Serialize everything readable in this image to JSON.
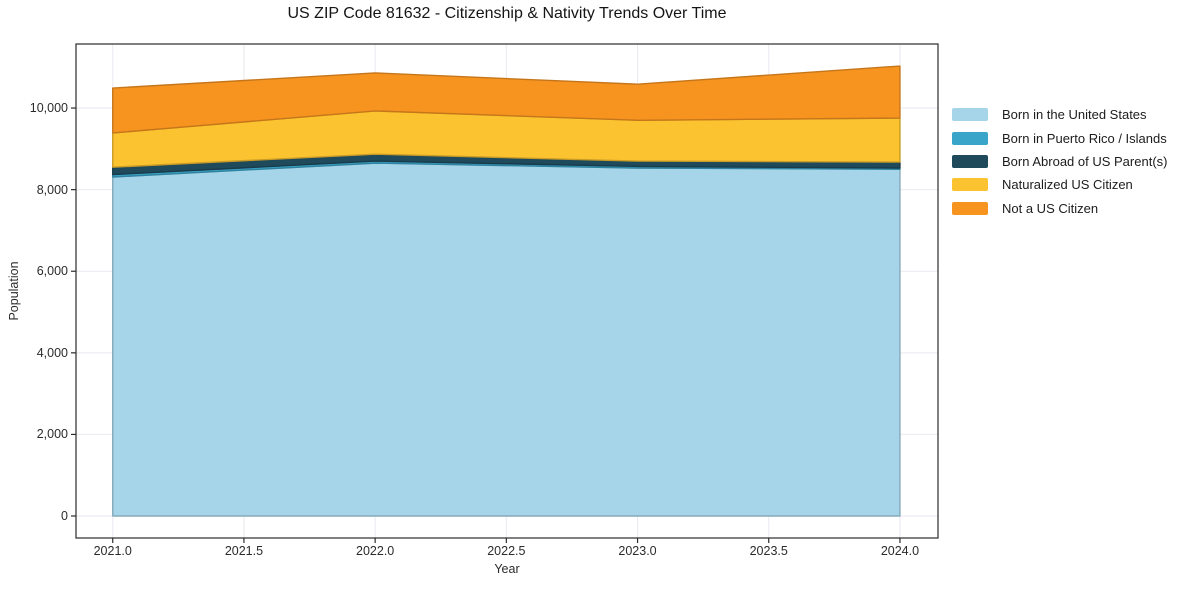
{
  "window": {
    "title": "US ZIP Code 81632 - Citizenship & Nativity Trends Over Time"
  },
  "chart_data": {
    "type": "area",
    "stacked": true,
    "title": "US ZIP Code 81632 - Citizenship & Nativity Trends Over Time",
    "xlabel": "Year",
    "ylabel": "Population",
    "x": [
      2021,
      2022,
      2023,
      2024
    ],
    "series": [
      {
        "name": "Born in the United States",
        "color": "#a6d4e8",
        "values": [
          8310,
          8650,
          8530,
          8500
        ]
      },
      {
        "name": "Born in Puerto Rico / Islands",
        "color": "#39a5c8",
        "values": [
          60,
          50,
          40,
          30
        ]
      },
      {
        "name": "Born Abroad of US Parent(s)",
        "color": "#1f4a5c",
        "values": [
          180,
          170,
          130,
          145
        ]
      },
      {
        "name": "Naturalized US Citizen",
        "color": "#fcc330",
        "values": [
          840,
          1060,
          1000,
          1080
        ]
      },
      {
        "name": "Not a US Citizen",
        "color": "#f79420",
        "values": [
          1100,
          930,
          885,
          1275
        ]
      }
    ],
    "totals": [
      10490,
      10860,
      10585,
      11030
    ],
    "xlim": [
      2020.86,
      2024.145
    ],
    "ylim": [
      -539,
      11570
    ],
    "xticks": {
      "values": [
        2021.0,
        2021.5,
        2022.0,
        2022.5,
        2023.0,
        2023.5,
        2024.0
      ],
      "labels": [
        "2021.0",
        "2021.5",
        "2022.0",
        "2022.5",
        "2023.0",
        "2023.5",
        "2024.0"
      ]
    },
    "yticks": {
      "values": [
        0,
        2000,
        4000,
        6000,
        8000,
        10000
      ],
      "labels": [
        "0",
        "2,000",
        "4,000",
        "6,000",
        "8,000",
        "10,000"
      ]
    },
    "grid": true,
    "grid_color": "#e9e9f0",
    "frame_color": "#2b2b2b",
    "legend_position": "right-outside"
  }
}
